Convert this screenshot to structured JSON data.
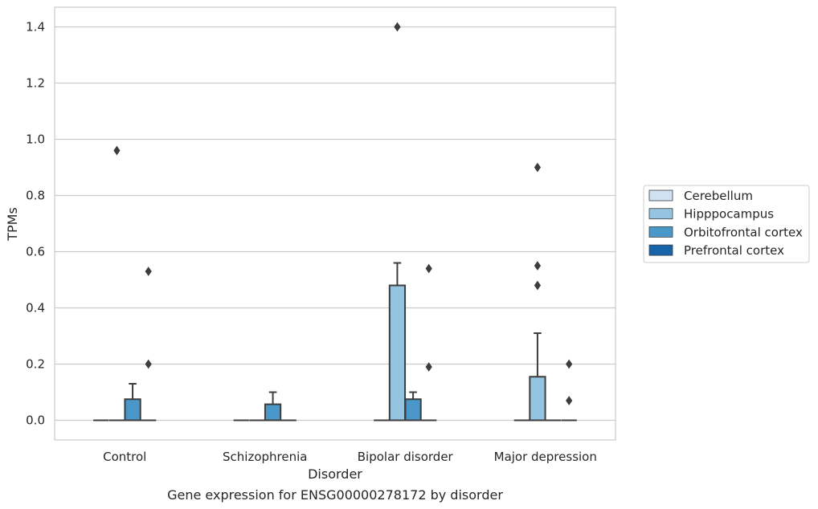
{
  "caption": "Gene expression for ENSG00000278172 by disorder",
  "chart_data": {
    "type": "box",
    "xlabel": "Disorder",
    "ylabel": "TPMs",
    "ylim": [
      -0.07,
      1.47
    ],
    "yticks": [
      0.0,
      0.2,
      0.4,
      0.6,
      0.8,
      1.0,
      1.2,
      1.4
    ],
    "ytick_labels": [
      "0.0",
      "0.2",
      "0.4",
      "0.6",
      "0.8",
      "1.0",
      "1.2",
      "1.4"
    ],
    "grid": "horizontal",
    "legend_position": "right",
    "categories": [
      "Control",
      "Schizophrenia",
      "Bipolar disorder",
      "Major depression"
    ],
    "series": [
      {
        "name": "Cerebellum",
        "color": "#d0e1f2",
        "boxes": [
          {
            "q1": 0,
            "median": 0,
            "q3": 0,
            "whisker_low": 0,
            "whisker_high": 0,
            "outliers": []
          },
          {
            "q1": 0,
            "median": 0,
            "q3": 0,
            "whisker_low": 0,
            "whisker_high": 0,
            "outliers": []
          },
          {
            "q1": 0,
            "median": 0,
            "q3": 0,
            "whisker_low": 0,
            "whisker_high": 0,
            "outliers": []
          },
          {
            "q1": 0,
            "median": 0,
            "q3": 0,
            "whisker_low": 0,
            "whisker_high": 0,
            "outliers": []
          }
        ]
      },
      {
        "name": "Hipppocampus",
        "color": "#94c4df",
        "boxes": [
          {
            "q1": 0,
            "median": 0,
            "q3": 0,
            "whisker_low": 0,
            "whisker_high": 0,
            "outliers": [
              0.96
            ]
          },
          {
            "q1": 0,
            "median": 0,
            "q3": 0,
            "whisker_low": 0,
            "whisker_high": 0,
            "outliers": []
          },
          {
            "q1": 0,
            "median": 0,
            "q3": 0.48,
            "whisker_low": 0,
            "whisker_high": 0.56,
            "outliers": [
              1.4
            ]
          },
          {
            "q1": 0,
            "median": 0,
            "q3": 0.155,
            "whisker_low": 0,
            "whisker_high": 0.31,
            "outliers": [
              0.9,
              0.55,
              0.48
            ]
          }
        ]
      },
      {
        "name": "Orbitofrontal cortex",
        "color": "#4a98c9",
        "boxes": [
          {
            "q1": 0,
            "median": 0,
            "q3": 0.075,
            "whisker_low": 0,
            "whisker_high": 0.13,
            "outliers": []
          },
          {
            "q1": 0,
            "median": 0,
            "q3": 0.057,
            "whisker_low": 0,
            "whisker_high": 0.1,
            "outliers": []
          },
          {
            "q1": 0,
            "median": 0,
            "q3": 0.075,
            "whisker_low": 0,
            "whisker_high": 0.1,
            "outliers": []
          },
          {
            "q1": 0,
            "median": 0,
            "q3": 0,
            "whisker_low": 0,
            "whisker_high": 0,
            "outliers": []
          }
        ]
      },
      {
        "name": "Prefrontal cortex",
        "color": "#1764ab",
        "boxes": [
          {
            "q1": 0,
            "median": 0,
            "q3": 0,
            "whisker_low": 0,
            "whisker_high": 0,
            "outliers": [
              0.53,
              0.2
            ]
          },
          {
            "q1": 0,
            "median": 0,
            "q3": 0,
            "whisker_low": 0,
            "whisker_high": 0,
            "outliers": []
          },
          {
            "q1": 0,
            "median": 0,
            "q3": 0,
            "whisker_low": 0,
            "whisker_high": 0,
            "outliers": [
              0.54,
              0.19
            ]
          },
          {
            "q1": 0,
            "median": 0,
            "q3": 0,
            "whisker_low": 0,
            "whisker_high": 0,
            "outliers": [
              0.2,
              0.07
            ]
          }
        ]
      }
    ]
  }
}
